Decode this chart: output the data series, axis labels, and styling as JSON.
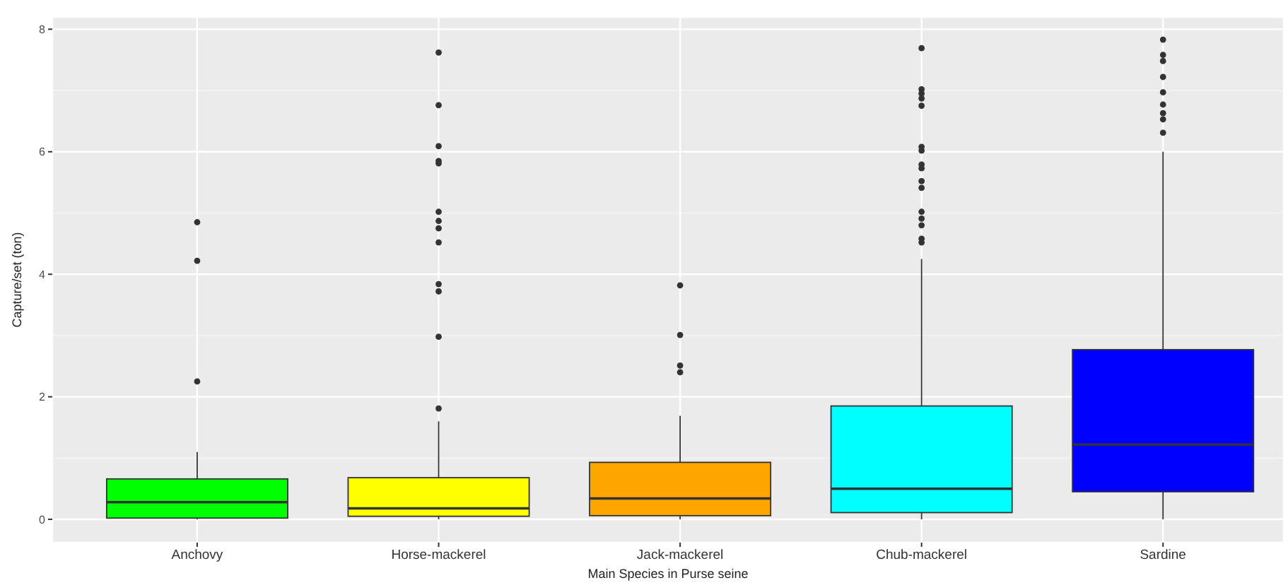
{
  "chart_data": {
    "type": "box",
    "xlabel": "Main Species in Purse seine",
    "ylabel": "Capture/set (ton)",
    "categories": [
      "Anchovy",
      "Horse-mackerel",
      "Jack-mackerel",
      "Chub-mackerel",
      "Sardine"
    ],
    "colors": [
      "#00ff00",
      "#ffff00",
      "#ffa500",
      "#00ffff",
      "#0000ff"
    ],
    "boxes": [
      {
        "low": 0,
        "q1": 0.02,
        "median": 0.28,
        "q3": 0.66,
        "high": 1.1,
        "outliers": [
          4.85,
          4.22,
          2.25
        ]
      },
      {
        "low": 0,
        "q1": 0.05,
        "median": 0.18,
        "q3": 0.68,
        "high": 1.6,
        "outliers": [
          7.62,
          6.76,
          6.09,
          5.85,
          5.81,
          5.02,
          4.87,
          4.75,
          4.52,
          3.84,
          3.72,
          2.98,
          1.81
        ]
      },
      {
        "low": 0,
        "q1": 0.06,
        "median": 0.34,
        "q3": 0.93,
        "high": 1.69,
        "outliers": [
          3.82,
          3.01,
          2.51,
          2.4
        ]
      },
      {
        "low": 0,
        "q1": 0.11,
        "median": 0.5,
        "q3": 1.85,
        "high": 4.25,
        "outliers": [
          7.69,
          7.02,
          6.95,
          6.87,
          6.75,
          6.08,
          6.02,
          5.79,
          5.73,
          5.52,
          5.41,
          5.02,
          4.91,
          4.8,
          4.58,
          4.52
        ]
      },
      {
        "low": 0,
        "q1": 0.45,
        "median": 1.22,
        "q3": 2.77,
        "high": 6.0,
        "outliers": [
          7.83,
          7.58,
          7.48,
          7.22,
          6.97,
          6.77,
          6.63,
          6.53,
          6.31
        ]
      }
    ],
    "ylim": [
      -0.38,
      8.2
    ],
    "yticks": [
      0,
      2,
      4,
      6,
      8
    ],
    "grid": true
  }
}
